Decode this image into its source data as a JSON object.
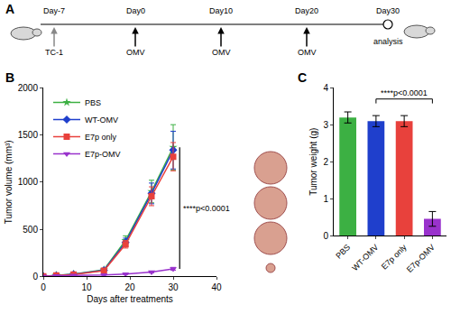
{
  "panel_labels": [
    "A",
    "B",
    "C"
  ],
  "timeline": {
    "events": [
      {
        "day": "Day-7",
        "label": "TC-1"
      },
      {
        "day": "Day0",
        "label": "OMV"
      },
      {
        "day": "Day10",
        "label": "OMV"
      },
      {
        "day": "Day20",
        "label": "OMV"
      },
      {
        "day": "Day30",
        "label": "analysis"
      }
    ]
  },
  "chart_data": [
    {
      "type": "line",
      "x_label": "Days after treatments",
      "y_label": "Tumor volume (mm³)",
      "x": [
        0,
        3,
        7,
        14,
        19,
        25,
        30
      ],
      "xlim": [
        0,
        40
      ],
      "xticks": [
        0,
        10,
        20,
        30,
        40
      ],
      "ylim": [
        0,
        2000
      ],
      "yticks": [
        0,
        500,
        1000,
        1500,
        2000
      ],
      "grid": false,
      "legend": "upper left",
      "series": [
        {
          "name": "PBS",
          "color": "#3cb043",
          "marker": "star",
          "values": [
            0,
            12,
            25,
            70,
            380,
            900,
            1370
          ],
          "errors": [
            0,
            4,
            6,
            15,
            50,
            120,
            240
          ]
        },
        {
          "name": "WT-OMV",
          "color": "#1f3fcc",
          "marker": "diamond",
          "values": [
            0,
            10,
            22,
            65,
            360,
            880,
            1340
          ],
          "errors": [
            0,
            4,
            6,
            15,
            45,
            110,
            200
          ]
        },
        {
          "name": "E7p only",
          "color": "#e8413c",
          "marker": "square",
          "values": [
            0,
            10,
            20,
            60,
            340,
            850,
            1270
          ],
          "errors": [
            0,
            3,
            5,
            12,
            40,
            100,
            150
          ]
        },
        {
          "name": "E7p-OMV",
          "color": "#9932cc",
          "marker": "triangle-down",
          "values": [
            0,
            5,
            10,
            15,
            25,
            45,
            80
          ],
          "errors": [
            0,
            2,
            3,
            4,
            6,
            8,
            15
          ]
        }
      ],
      "annotations": [
        {
          "text": "****p<0.0001"
        }
      ]
    },
    {
      "type": "bar",
      "y_label": "Tumor weight (g)",
      "categories": [
        "PBS",
        "WT-OMV",
        "E7p only",
        "E7p-OMV"
      ],
      "values": [
        3.2,
        3.1,
        3.1,
        0.45
      ],
      "errors": [
        0.15,
        0.15,
        0.15,
        0.2
      ],
      "colors": [
        "#3cb043",
        "#1f3fcc",
        "#e8413c",
        "#9932cc"
      ],
      "ylim": [
        0,
        4
      ],
      "yticks": [
        0,
        1,
        2,
        3,
        4
      ],
      "grid": false,
      "annotations": [
        {
          "text": "****p<0.0001",
          "from": "WT-OMV",
          "to": "E7p-OMV",
          "y": 3.7
        }
      ]
    }
  ]
}
